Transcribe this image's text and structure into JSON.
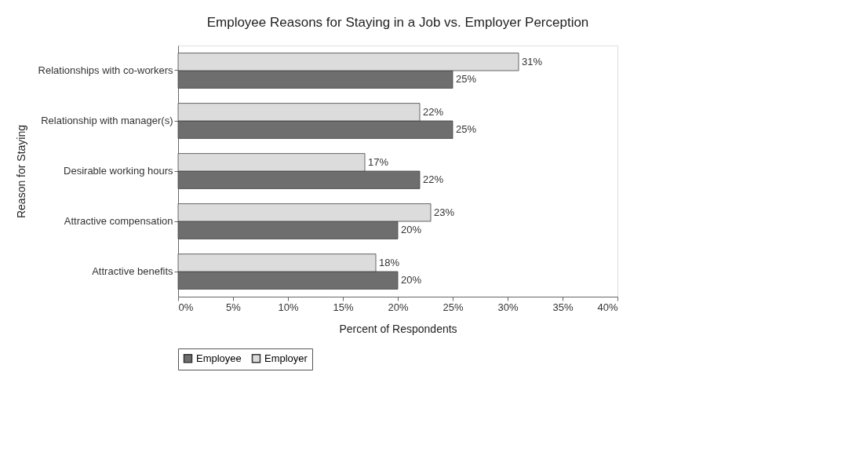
{
  "chart_data": {
    "type": "bar",
    "orientation": "horizontal",
    "title": "Employee Reasons for Staying in a Job vs. Employer Perception",
    "xlabel": "Percent of Respondents",
    "ylabel": "Reason for Staying",
    "categories": [
      "Relationships with co-workers",
      "Relationship with manager(s)",
      "Desirable working hours",
      "Attractive compensation",
      "Attractive benefits"
    ],
    "series": [
      {
        "name": "Employee",
        "color": "#6e6e6e",
        "values": [
          25,
          25,
          22,
          20,
          20
        ],
        "value_labels": [
          "25%",
          "25%",
          "22%",
          "20%",
          "20%"
        ]
      },
      {
        "name": "Employer",
        "color": "#dcdcdc",
        "values": [
          31,
          22,
          17,
          23,
          18
        ],
        "value_labels": [
          "31%",
          "22%",
          "17%",
          "23%",
          "18%"
        ]
      }
    ],
    "xlim": [
      0,
      40
    ],
    "xticks": [
      {
        "value": 0,
        "label": "0%"
      },
      {
        "value": 5,
        "label": "5%"
      },
      {
        "value": 10,
        "label": "10%"
      },
      {
        "value": 15,
        "label": "15%"
      },
      {
        "value": 20,
        "label": "20%"
      },
      {
        "value": 25,
        "label": "25%"
      },
      {
        "value": 30,
        "label": "30%"
      },
      {
        "value": 35,
        "label": "35%"
      },
      {
        "value": 40,
        "label": "40%"
      }
    ],
    "grid": false,
    "legend": "bottom"
  }
}
